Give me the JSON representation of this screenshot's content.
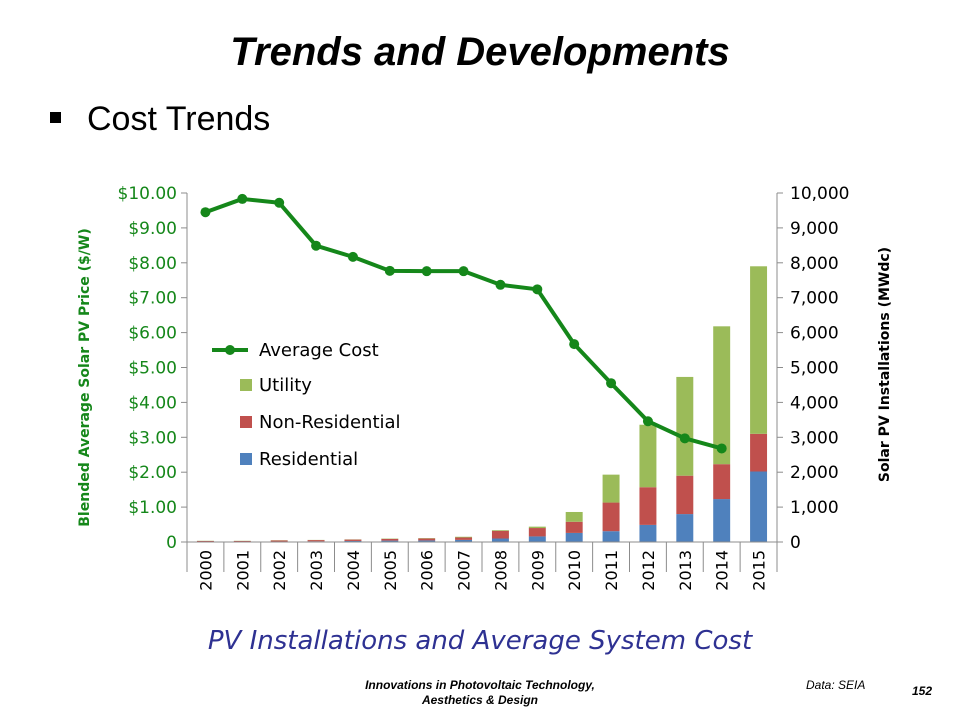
{
  "slide": {
    "title": "Trends and Developments",
    "bullet": "Cost Trends",
    "caption": "PV Installations and Average System Cost",
    "footer_line1": "Innovations  in Photovoltaic Technology,",
    "footer_line2": "Aesthetics  & Design",
    "source": "Data: SEIA",
    "page_number": "152"
  },
  "colors": {
    "average_cost": "#15871a",
    "utility": "#9bbb59",
    "non_residential": "#c0504d",
    "residential": "#4f81bd",
    "left_axis_text": "#15871a",
    "caption": "#2e3192"
  },
  "chart_data": {
    "type": "bar",
    "title": "",
    "categories": [
      "2000",
      "2001",
      "2002",
      "2003",
      "2004",
      "2005",
      "2006",
      "2007",
      "2008",
      "2009",
      "2010",
      "2011",
      "2012",
      "2013",
      "2014",
      "2015"
    ],
    "y_left_label": "Blended Average Solar PV Price ($/W)",
    "y_right_label": "Solar PV Installations (MWdc)",
    "y_left_ticks": [
      "0",
      "$1.00",
      "$2.00",
      "$3.00",
      "$4.00",
      "$5.00",
      "$6.00",
      "$7.00",
      "$8.00",
      "$9.00",
      "$10.00"
    ],
    "y_right_ticks": [
      "0",
      "1,000",
      "2,000",
      "3,000",
      "4,000",
      "5,000",
      "6,000",
      "7,000",
      "8,000",
      "9,000",
      "10,000"
    ],
    "y_left_range": [
      0,
      10
    ],
    "y_right_range": [
      0,
      10000
    ],
    "legend_position": "left-middle",
    "stacked_series": [
      {
        "name": "Residential",
        "color": "#4f81bd",
        "values": [
          10,
          10,
          15,
          20,
          30,
          40,
          45,
          60,
          100,
          160,
          260,
          310,
          490,
          800,
          1230,
          2020
        ]
      },
      {
        "name": "Non-Residential",
        "color": "#c0504d",
        "values": [
          20,
          20,
          30,
          35,
          40,
          50,
          55,
          70,
          220,
          240,
          320,
          820,
          1080,
          1100,
          1000,
          1080
        ]
      },
      {
        "name": "Utility",
        "color": "#9bbb59",
        "values": [
          5,
          5,
          5,
          5,
          5,
          10,
          10,
          20,
          20,
          40,
          280,
          800,
          1790,
          2830,
          3950,
          4800
        ]
      }
    ],
    "line_series": {
      "name": "Average Cost",
      "color": "#15871a",
      "axis": "left",
      "values": [
        9.45,
        9.83,
        9.72,
        8.49,
        8.17,
        7.77,
        7.76,
        7.76,
        7.37,
        7.24,
        5.67,
        4.55,
        3.46,
        2.97,
        2.68,
        null
      ]
    },
    "legend": [
      "Average Cost",
      "Utility",
      "Non-Residential",
      "Residential"
    ]
  }
}
